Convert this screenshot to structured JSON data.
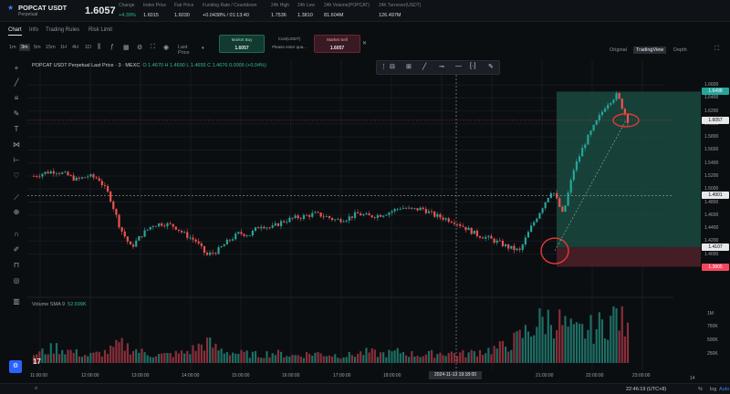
{
  "header": {
    "symbol": "POPCAT USDT",
    "contract_type": "Perpetual",
    "last_price": "1.6057",
    "stats": [
      {
        "label": "Change",
        "value": "+4.39%",
        "color": "green"
      },
      {
        "label": "Index Price",
        "value": "1.6015",
        "color": ""
      },
      {
        "label": "Fair Price",
        "value": "1.6030",
        "color": ""
      },
      {
        "label": "Funding Rate / Countdown",
        "value": "+0.0438% / 01:13:40",
        "color": ""
      },
      {
        "label": "24h High",
        "value": "1.7536",
        "color": ""
      },
      {
        "label": "24h Low",
        "value": "1.3810",
        "color": ""
      },
      {
        "label": "24h Volume(POPCAT)",
        "value": "81.604M",
        "color": ""
      },
      {
        "label": "24h Turnover(USDT)",
        "value": "126.497M",
        "color": ""
      }
    ]
  },
  "tabs": [
    "Chart",
    "Info",
    "Trading Rules",
    "Risk Limit"
  ],
  "timeframes": [
    "1m",
    "3m",
    "5m",
    "15m",
    "1H",
    "4H",
    "1D"
  ],
  "active_timeframe": "3m",
  "toolbar": {
    "last_price_label": "Last Price"
  },
  "order_boxes": {
    "buy_label": "Market Buy",
    "buy_value": "1.6057",
    "cost_label": "Cost(USDT)",
    "cost_placeholder": "Please enter qua...",
    "sell_label": "Market Sell",
    "sell_value": "1.6057"
  },
  "view_tabs": [
    "Original",
    "TradingView",
    "Depth"
  ],
  "active_view": "TradingView",
  "legend": {
    "title": "POPCAT USDT Perpetual Last Price · 3 · MEXC",
    "ohlc": "O 1.4670  H 1.4690  L 1.4655  C 1.4676  0.0005 (+0.04%)"
  },
  "volume_legend": {
    "name": "Volume SMA 9",
    "value": "52.699K"
  },
  "price_labels": [
    {
      "text": "1.6498",
      "bg": "#26a69a",
      "fg": "#ffffff"
    },
    {
      "text": "1.6057",
      "bg": "#e6e8ea",
      "fg": "#000000"
    },
    {
      "text": "1.4901",
      "bg": "#e6e8ea",
      "fg": "#000000"
    },
    {
      "text": "1.4107",
      "bg": "#e6e8ea",
      "fg": "#000000"
    },
    {
      "text": "1.3805",
      "bg": "#f6465d",
      "fg": "#ffffff"
    }
  ],
  "volume_ticks": [
    "1M",
    "750K",
    "500K",
    "250K"
  ],
  "bottom": {
    "clock": "22:46:19 (UTC+8)",
    "pct": "%",
    "log": "log",
    "auto": "Auto",
    "days": "14"
  },
  "chart_data": {
    "type": "candlestick",
    "y_axis": {
      "min": 1.37,
      "max": 1.67,
      "ticks": [
        1.66,
        1.64,
        1.62,
        1.6,
        1.58,
        1.56,
        1.54,
        1.52,
        1.5,
        1.48,
        1.46,
        1.44,
        1.42,
        1.4
      ]
    },
    "x_ticks": [
      "11:00:00",
      "12:00:00",
      "13:00:00",
      "14:00:00",
      "15:00:00",
      "16:00:00",
      "17:00:00",
      "18:00:00",
      "21:00:00",
      "22:00:00",
      "23:00:00"
    ],
    "crosshair": {
      "time": "2024-11-13   19:18:00",
      "price": "1.4901"
    },
    "position": {
      "entry": 1.4107,
      "take_profit": 1.6498,
      "stop_loss": 1.3805
    },
    "close_path": [
      1.52,
      1.525,
      1.528,
      1.522,
      1.514,
      1.52,
      1.516,
      1.49,
      1.44,
      1.41,
      1.43,
      1.445,
      1.447,
      1.443,
      1.43,
      1.42,
      1.398,
      1.405,
      1.42,
      1.432,
      1.43,
      1.445,
      1.44,
      1.45,
      1.455,
      1.458,
      1.462,
      1.458,
      1.452,
      1.455,
      1.462,
      1.458,
      1.46,
      1.465,
      1.472,
      1.468,
      1.47,
      1.46,
      1.455,
      1.45,
      1.44,
      1.43,
      1.425,
      1.418,
      1.41,
      1.405,
      1.44,
      1.47,
      1.5,
      1.46,
      1.53,
      1.57,
      1.6,
      1.63,
      1.645,
      1.6057
    ],
    "volume": [
      180,
      230,
      320,
      260,
      200,
      150,
      190,
      240,
      380,
      300,
      220,
      170,
      160,
      180,
      210,
      300,
      420,
      280,
      230,
      190,
      180,
      160,
      210,
      180,
      150,
      170,
      200,
      180,
      160,
      150,
      190,
      220,
      180,
      200,
      230,
      180,
      160,
      190,
      210,
      200,
      180,
      230,
      260,
      300,
      380,
      520,
      700,
      850,
      900,
      780,
      600,
      650,
      700,
      820,
      1000,
      600
    ]
  }
}
